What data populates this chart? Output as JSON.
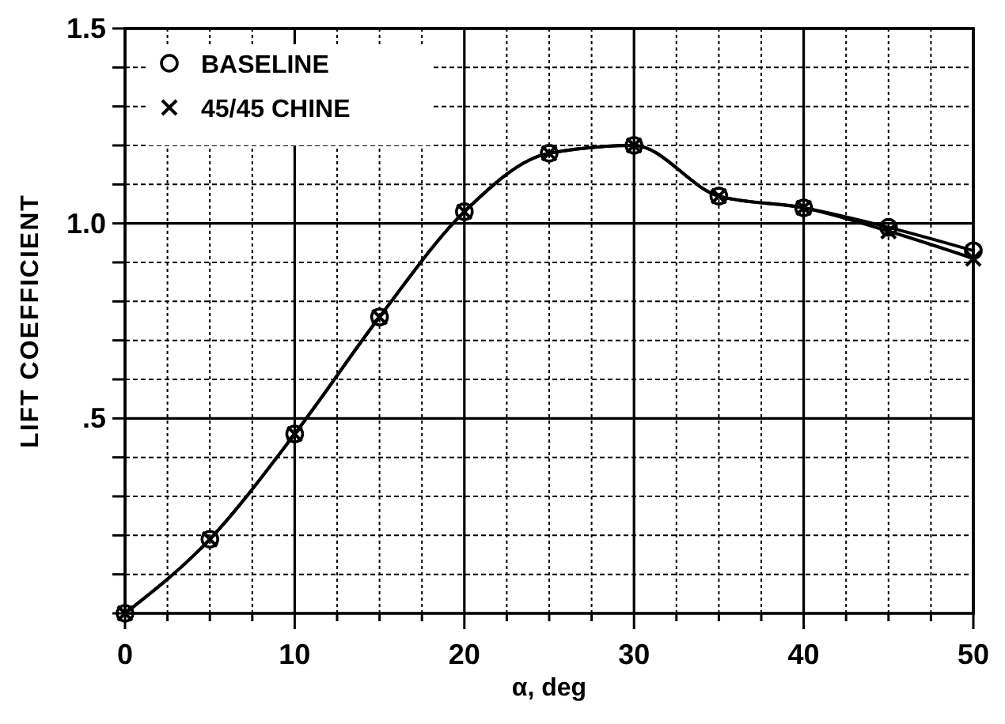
{
  "chart_data": {
    "type": "line",
    "xlabel": "α, deg",
    "ylabel": "LIFT COEFFICIENT",
    "x": [
      0,
      5,
      10,
      15,
      20,
      25,
      30,
      35,
      40,
      45,
      50
    ],
    "series": [
      {
        "name": "BASELINE",
        "color": "#000000",
        "marker": "circle",
        "values": [
          0,
          0.19,
          0.46,
          0.76,
          1.03,
          1.18,
          1.2,
          1.07,
          1.04,
          0.99,
          0.93
        ]
      },
      {
        "name": "45/45 CHINE",
        "color": "#000000",
        "marker": "cross",
        "values": [
          0,
          0.19,
          0.46,
          0.76,
          1.03,
          1.18,
          1.2,
          1.07,
          1.04,
          0.98,
          0.91
        ]
      }
    ],
    "xlim": [
      0,
      50
    ],
    "xticks": [
      0,
      {
        "value": 2.5,
        "label": null
      },
      {
        "value": 5,
        "label": null
      },
      {
        "value": 7.5,
        "label": null
      },
      10,
      {
        "value": 12.5,
        "label": null
      },
      {
        "value": 15,
        "label": null
      },
      {
        "value": 17.5,
        "label": null
      },
      20,
      {
        "value": 22.5,
        "label": null
      },
      {
        "value": 25,
        "label": null
      },
      {
        "value": 27.5,
        "label": null
      },
      30,
      {
        "value": 32.5,
        "label": null
      },
      {
        "value": 35,
        "label": null
      },
      {
        "value": 37.5,
        "label": null
      },
      40,
      {
        "value": 42.5,
        "label": null
      },
      {
        "value": 45,
        "label": null
      },
      {
        "value": 47.5,
        "label": null
      },
      50
    ],
    "ylim": [
      0,
      1.5
    ],
    "yticks": [
      {
        "value": 0,
        "label": null
      },
      {
        "value": 0.1,
        "label": null
      },
      {
        "value": 0.2,
        "label": null
      },
      {
        "value": 0.3,
        "label": null
      },
      {
        "value": 0.4,
        "label": null
      },
      {
        "value": 0.5,
        "label": ".5"
      },
      {
        "value": 0.6,
        "label": null
      },
      {
        "value": 0.7,
        "label": null
      },
      {
        "value": 0.8,
        "label": null
      },
      {
        "value": 0.9,
        "label": null
      },
      {
        "value": 1,
        "label": "1.0"
      },
      {
        "value": 1.1,
        "label": null
      },
      {
        "value": 1.2,
        "label": null
      },
      {
        "value": 1.3,
        "label": null
      },
      {
        "value": 1.4,
        "label": null
      },
      1.5
    ],
    "grid": true,
    "legend": "top left",
    "line_style": "solid"
  }
}
